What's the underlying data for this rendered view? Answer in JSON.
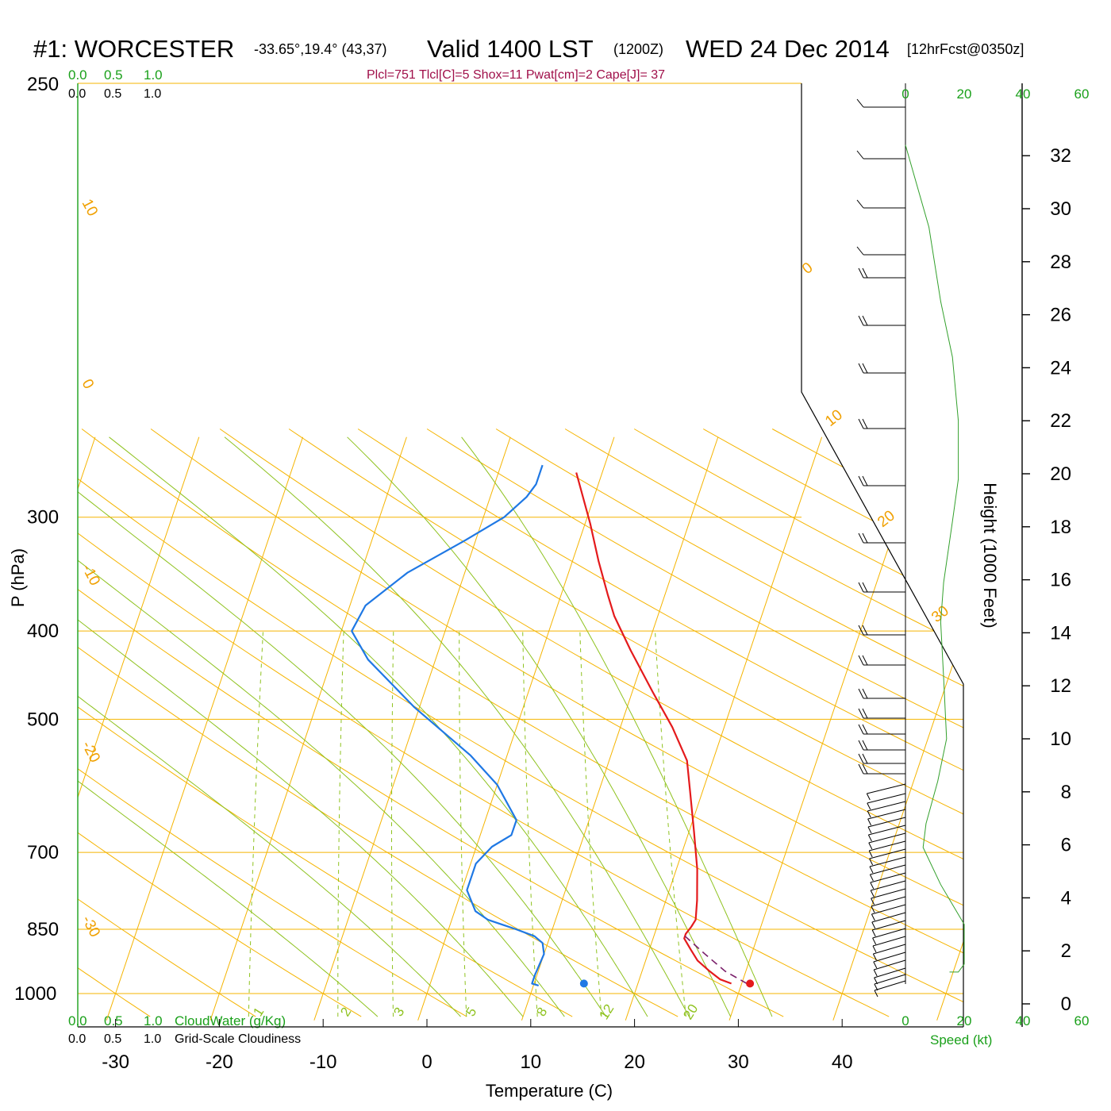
{
  "header": {
    "station": "#1: WORCESTER",
    "coords": "-33.65°,19.4° (43,37)",
    "valid_label": "Valid 1400 LST",
    "zulu": "(1200Z)",
    "date": "WED 24 Dec 2014",
    "forecast": "[12hrFcst@0350z]",
    "indices": "Plcl=751 Tlcl[C]=5 Shox=11 Pwat[cm]=2 Cape[J]= 37"
  },
  "colors": {
    "temperature": "#e41a1c",
    "dewpoint": "#1f78e4",
    "isobar_isotherm": "#f5b400",
    "mixing_ratio": "#8ec21e",
    "parcel": "#7a1f6a",
    "wind_speed": "#33a02c",
    "indices": "#a0104a"
  },
  "chart_data": {
    "type": "line",
    "subtype": "skew-t log-p sounding",
    "xlabel": "Temperature (C)",
    "ylabel": "P (hPa)",
    "y2label": "Height (1000 Feet)",
    "x_ticks": [
      -30,
      -20,
      -10,
      0,
      10,
      20,
      30,
      40
    ],
    "pressure_ticks": [
      250,
      300,
      400,
      500,
      700,
      850,
      1000
    ],
    "height_ticks": [
      0,
      2,
      4,
      6,
      8,
      10,
      12,
      14,
      16,
      18,
      20,
      22,
      24,
      26,
      28,
      30,
      32
    ],
    "dry_adiabat_labels": [
      "10",
      "0",
      "-10",
      "-20",
      "-30",
      "0",
      "10",
      "20",
      "30"
    ],
    "mixing_ratio_labels": [
      "1",
      "2",
      "3",
      "5",
      "8",
      "12",
      "20"
    ],
    "series": [
      {
        "name": "Temperature",
        "points_T_C_p_hPa": [
          [
            29.0,
            975
          ],
          [
            27.8,
            965
          ],
          [
            26.5,
            945
          ],
          [
            25.0,
            920
          ],
          [
            24.0,
            895
          ],
          [
            23.0,
            870
          ],
          [
            23.0,
            860
          ],
          [
            23.3,
            845
          ],
          [
            23.5,
            830
          ],
          [
            23.0,
            790
          ],
          [
            22.0,
            730
          ],
          [
            20.5,
            665
          ],
          [
            18.8,
            600
          ],
          [
            17.5,
            555
          ],
          [
            15.0,
            510
          ],
          [
            12.0,
            467
          ],
          [
            8.5,
            420
          ],
          [
            5.8,
            385
          ],
          [
            4.5,
            365
          ],
          [
            2.5,
            335
          ],
          [
            0.5,
            305
          ],
          [
            -2.5,
            268
          ]
        ]
      },
      {
        "name": "Dewpoint",
        "points_T_C_p_hPa": [
          [
            10.5,
            980
          ],
          [
            9.8,
            975
          ],
          [
            9.8,
            955
          ],
          [
            10.0,
            905
          ],
          [
            9.5,
            880
          ],
          [
            8.5,
            865
          ],
          [
            6.5,
            850
          ],
          [
            3.5,
            830
          ],
          [
            2.0,
            812
          ],
          [
            0.5,
            770
          ],
          [
            0.5,
            720
          ],
          [
            1.5,
            690
          ],
          [
            3.0,
            670
          ],
          [
            3.0,
            645
          ],
          [
            0.0,
            590
          ],
          [
            -3.5,
            548
          ],
          [
            -10.5,
            485
          ],
          [
            -16.5,
            430
          ],
          [
            -19.0,
            400
          ],
          [
            -18.5,
            375
          ],
          [
            -15.5,
            345
          ],
          [
            -11.0,
            318
          ],
          [
            -8.0,
            300
          ],
          [
            -6.5,
            285
          ],
          [
            -6.0,
            276
          ],
          [
            -6.0,
            263
          ]
        ]
      },
      {
        "name": "Parcel",
        "points_T_C_p_hPa": [
          [
            30.5,
            975
          ],
          [
            28.0,
            945
          ],
          [
            25.5,
            905
          ],
          [
            23.0,
            865
          ]
        ]
      }
    ],
    "surface": {
      "temperature_C": 30.8,
      "dewpoint_C": 14.8,
      "pressure_hPa": 975
    },
    "wind_speed_axis": {
      "label": "Speed (kt)",
      "ticks": [
        0,
        20,
        40,
        60
      ],
      "points_kt_height_kft": [
        [
          0,
          32.4
        ],
        [
          8,
          29.3
        ],
        [
          12,
          26.5
        ],
        [
          16,
          24.4
        ],
        [
          18,
          22.0
        ],
        [
          18,
          19.8
        ],
        [
          16,
          18.2
        ],
        [
          13,
          15.9
        ],
        [
          12,
          14.4
        ],
        [
          13,
          12.3
        ],
        [
          14,
          10.0
        ],
        [
          11,
          8.4
        ],
        [
          7,
          6.8
        ],
        [
          6,
          5.9
        ],
        [
          12,
          4.5
        ],
        [
          20,
          3.0
        ],
        [
          20,
          1.5
        ],
        [
          18,
          1.2
        ],
        [
          15,
          1.2
        ]
      ]
    },
    "wind_barbs": "north-westerly barbs, 5–20 kt, every level from surface to 250 hPa",
    "cloud_axes": {
      "cloudwater_label": "CloudWater (g/Kg)",
      "cloudiness_label": "Grid-Scale Cloudiness",
      "ticks": [
        "0.0",
        "0.5",
        "1.0"
      ]
    }
  }
}
